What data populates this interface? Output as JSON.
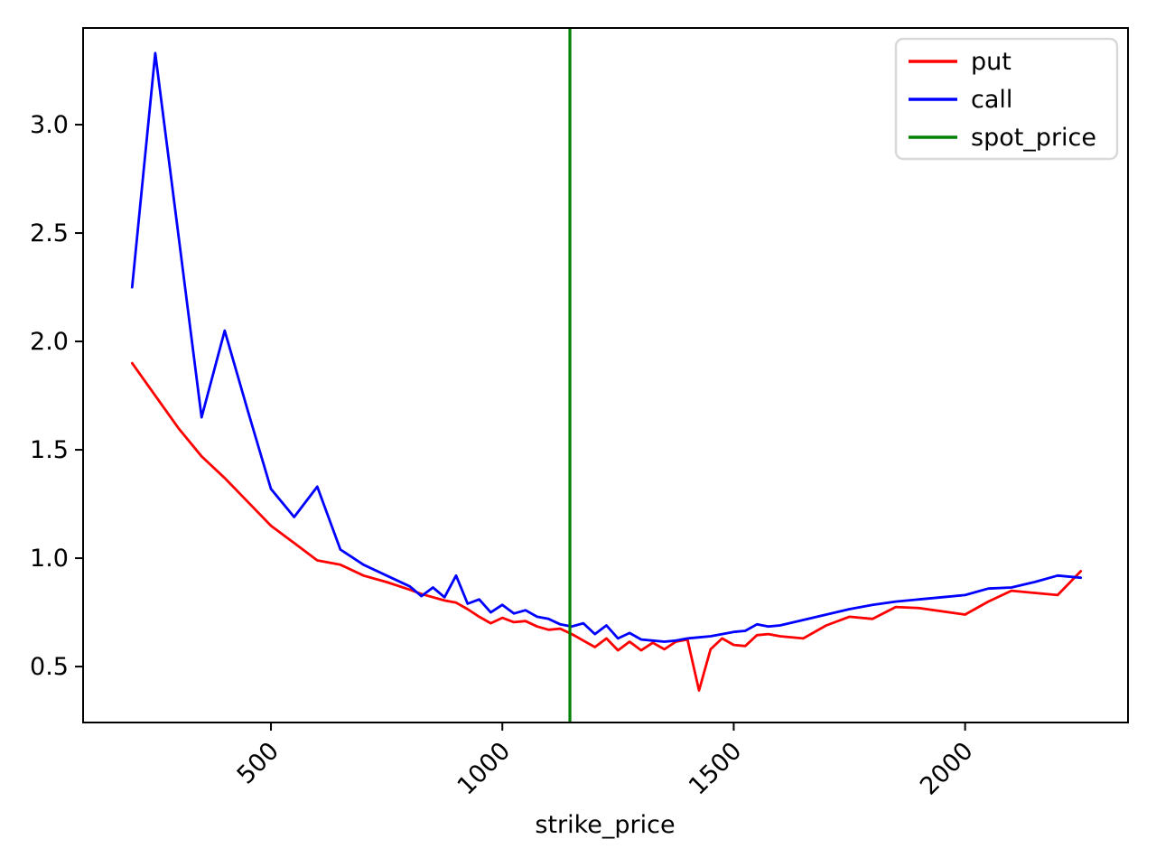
{
  "figure": {
    "background": "#ffffff",
    "xlabel": "strike_price"
  },
  "chart_data": {
    "type": "line",
    "title": "",
    "xlabel": "strike_price",
    "ylabel": "",
    "grid": false,
    "xlim": [
      94,
      2352
    ],
    "ylim": [
      0.242,
      3.446
    ],
    "x_ticks": [
      500,
      1000,
      1500,
      2000
    ],
    "y_ticks": [
      0.5,
      1.0,
      1.5,
      2.0,
      2.5,
      3.0
    ],
    "legend": {
      "position": "upper right",
      "entries": [
        {
          "label": "put",
          "color": "#ff0000"
        },
        {
          "label": "call",
          "color": "#0000ff"
        },
        {
          "label": "spot_price",
          "color": "#008000"
        }
      ]
    },
    "spot_price": 1146,
    "vline": {
      "name": "spot_price",
      "x": 1146,
      "color": "#008000"
    },
    "x": [
      200,
      250,
      300,
      350,
      400,
      450,
      500,
      550,
      600,
      650,
      700,
      750,
      800,
      825,
      850,
      875,
      900,
      925,
      950,
      975,
      1000,
      1025,
      1050,
      1075,
      1100,
      1125,
      1150,
      1175,
      1200,
      1225,
      1250,
      1275,
      1300,
      1325,
      1350,
      1375,
      1400,
      1425,
      1450,
      1475,
      1500,
      1525,
      1550,
      1575,
      1600,
      1650,
      1700,
      1750,
      1800,
      1850,
      1900,
      1950,
      2000,
      2050,
      2100,
      2150,
      2200,
      2250
    ],
    "series": [
      {
        "name": "put",
        "color": "#ff0000",
        "values": [
          1.9,
          1.75,
          1.6,
          1.47,
          1.37,
          1.26,
          1.15,
          1.07,
          0.99,
          0.97,
          0.92,
          0.89,
          0.855,
          0.835,
          0.82,
          0.805,
          0.795,
          0.765,
          0.73,
          0.7,
          0.725,
          0.705,
          0.71,
          0.685,
          0.67,
          0.675,
          0.65,
          0.62,
          0.59,
          0.63,
          0.575,
          0.615,
          0.575,
          0.61,
          0.58,
          0.615,
          0.625,
          0.39,
          0.58,
          0.63,
          0.6,
          0.595,
          0.645,
          0.65,
          0.64,
          0.63,
          0.69,
          0.73,
          0.72,
          0.775,
          0.77,
          0.755,
          0.74,
          0.8,
          0.85,
          0.84,
          0.83,
          0.94
        ]
      },
      {
        "name": "call",
        "color": "#0000ff",
        "values": [
          2.25,
          3.33,
          2.49,
          1.65,
          2.05,
          1.68,
          1.32,
          1.19,
          1.33,
          1.04,
          0.97,
          0.92,
          0.87,
          0.825,
          0.865,
          0.82,
          0.92,
          0.79,
          0.81,
          0.75,
          0.785,
          0.745,
          0.76,
          0.73,
          0.72,
          0.695,
          0.685,
          0.7,
          0.65,
          0.69,
          0.63,
          0.655,
          0.625,
          0.62,
          0.615,
          0.62,
          0.63,
          0.635,
          0.64,
          0.65,
          0.66,
          0.665,
          0.695,
          0.685,
          0.69,
          0.715,
          0.74,
          0.765,
          0.785,
          0.8,
          0.81,
          0.82,
          0.83,
          0.86,
          0.865,
          0.89,
          0.92,
          0.91
        ]
      }
    ]
  }
}
